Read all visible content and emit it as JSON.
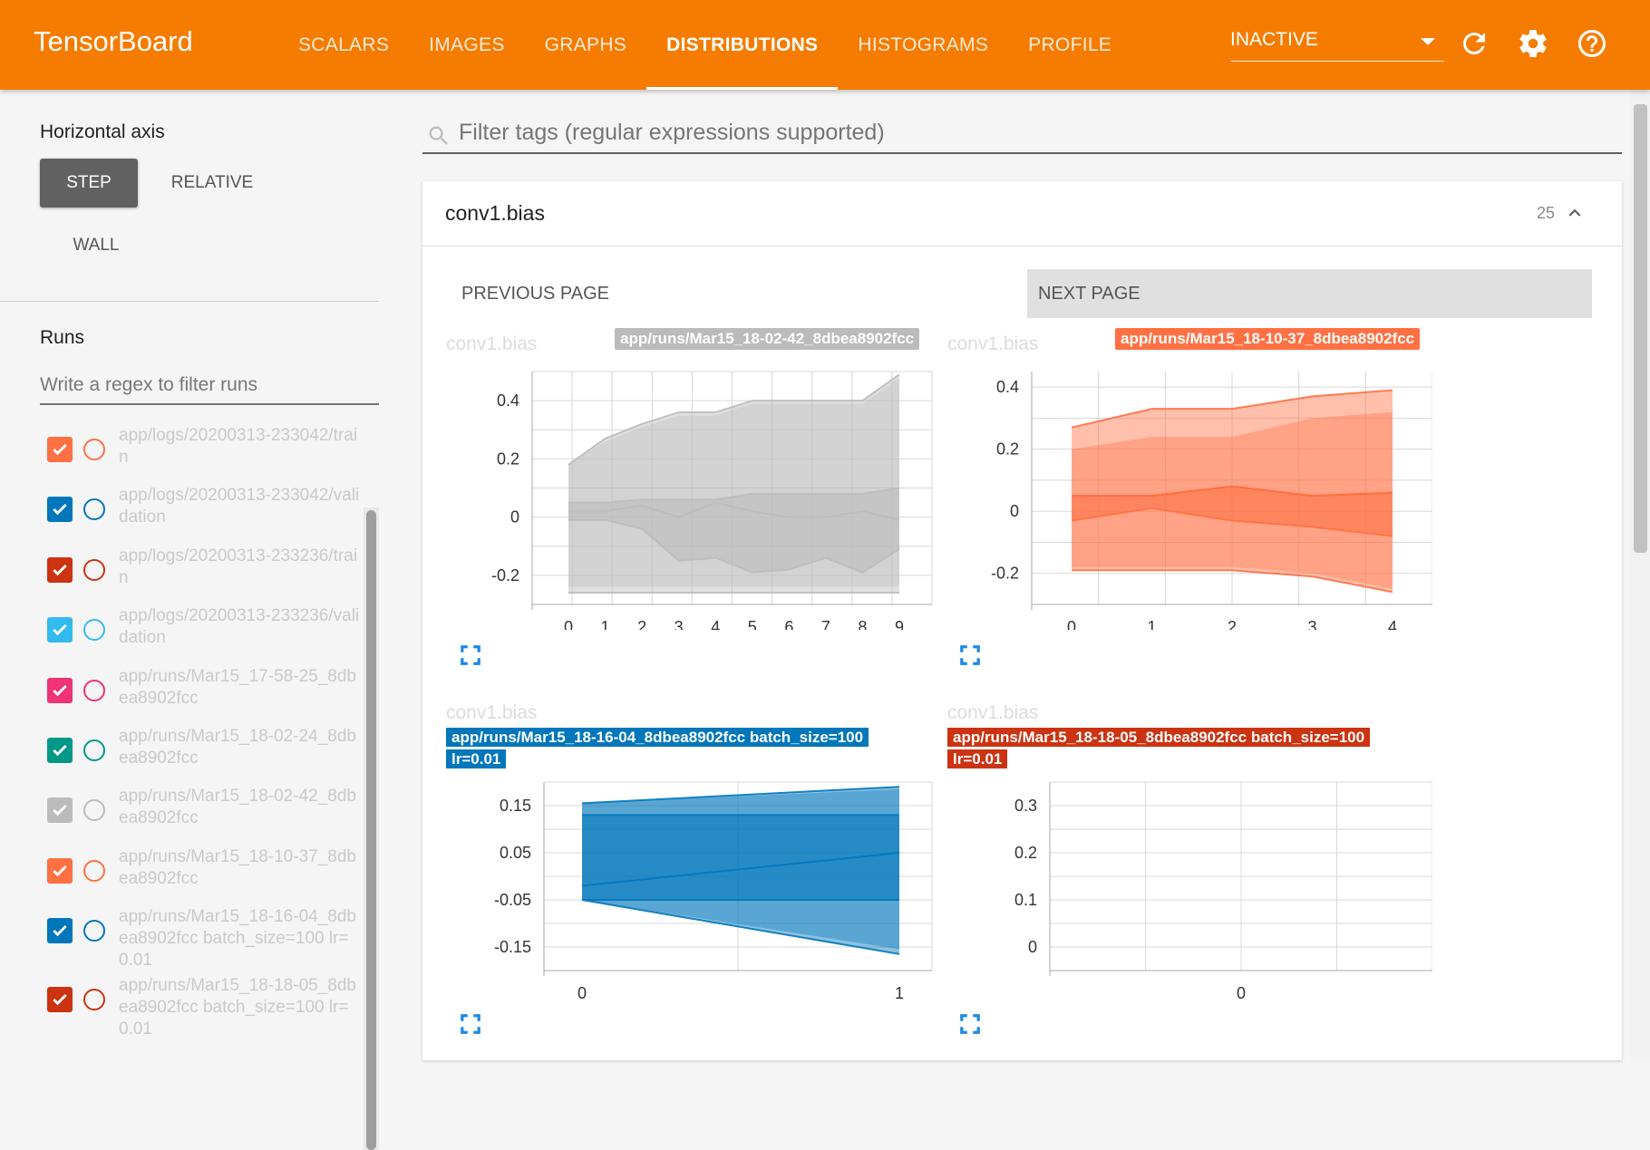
{
  "app": {
    "title": "TensorBoard"
  },
  "nav": {
    "tabs": [
      {
        "label": "SCALARS"
      },
      {
        "label": "IMAGES"
      },
      {
        "label": "GRAPHS"
      },
      {
        "label": "DISTRIBUTIONS"
      },
      {
        "label": "HISTOGRAMS"
      },
      {
        "label": "PROFILE"
      }
    ],
    "active_tab": "DISTRIBUTIONS",
    "run_selector_value": "INACTIVE"
  },
  "sidebar": {
    "horizontal_axis_label": "Horizontal axis",
    "axis_options": [
      "STEP",
      "RELATIVE",
      "WALL"
    ],
    "axis_selected": "STEP",
    "runs_label": "Runs",
    "runs_filter_placeholder": "Write a regex to filter runs",
    "runs": [
      {
        "name": "app/logs/20200313-233042/train",
        "color": "#ff7043"
      },
      {
        "name": "app/logs/20200313-233042/validation",
        "color": "#0077bb"
      },
      {
        "name": "app/logs/20200313-233236/train",
        "color": "#cc3311"
      },
      {
        "name": "app/logs/20200313-233236/validation",
        "color": "#33bbee"
      },
      {
        "name": "app/runs/Mar15_17-58-25_8dbea8902fcc",
        "color": "#ee3377"
      },
      {
        "name": "app/runs/Mar15_18-02-24_8dbea8902fcc",
        "color": "#009988"
      },
      {
        "name": "app/runs/Mar15_18-02-42_8dbea8902fcc",
        "color": "#bbbbbb"
      },
      {
        "name": "app/runs/Mar15_18-10-37_8dbea8902fcc",
        "color": "#ff7043"
      },
      {
        "name": "app/runs/Mar15_18-16-04_8dbea8902fcc batch_size=100 lr=0.01",
        "color": "#0077bb"
      },
      {
        "name": "app/runs/Mar15_18-18-05_8dbea8902fcc batch_size=100 lr=0.01",
        "color": "#cc3311"
      }
    ]
  },
  "main": {
    "filter_placeholder": "Filter tags (regular expressions supported)",
    "card": {
      "title": "conv1.bias",
      "count": "25",
      "prev_page": "PREVIOUS PAGE",
      "next_page": "NEXT PAGE"
    }
  },
  "chart_data": [
    {
      "type": "area",
      "tag": "conv1.bias",
      "run": "app/runs/Mar15_18-02-42_8dbea8902fcc",
      "color": "#bbbbbb",
      "x": [
        0,
        1,
        2,
        3,
        4,
        5,
        6,
        7,
        8,
        9
      ],
      "ylim": [
        -0.3,
        0.5
      ],
      "yticks": [
        "0.4",
        "0.2",
        "0",
        "-0.2"
      ],
      "bands": {
        "max": [
          0.18,
          0.27,
          0.32,
          0.36,
          0.36,
          0.4,
          0.4,
          0.4,
          0.4,
          0.49
        ],
        "p93": [
          0.18,
          0.26,
          0.31,
          0.35,
          0.35,
          0.39,
          0.39,
          0.39,
          0.39,
          0.48
        ],
        "p84": [
          0.05,
          0.05,
          0.06,
          0.06,
          0.06,
          0.08,
          0.08,
          0.08,
          0.08,
          0.1
        ],
        "median": [
          0.02,
          0.02,
          0.04,
          0.0,
          0.05,
          0.02,
          0.0,
          0.0,
          0.02,
          -0.01
        ],
        "p16": [
          -0.01,
          -0.01,
          -0.04,
          -0.15,
          -0.14,
          -0.19,
          -0.18,
          -0.14,
          -0.19,
          -0.11
        ],
        "p07": [
          -0.24,
          -0.24,
          -0.24,
          -0.24,
          -0.24,
          -0.24,
          -0.24,
          -0.24,
          -0.24,
          -0.24
        ],
        "min": [
          -0.26,
          -0.26,
          -0.26,
          -0.26,
          -0.26,
          -0.26,
          -0.26,
          -0.26,
          -0.26,
          -0.26
        ]
      }
    },
    {
      "type": "area",
      "tag": "conv1.bias",
      "run": "app/runs/Mar15_18-10-37_8dbea8902fcc",
      "color": "#ff7043",
      "x": [
        0,
        1,
        2,
        3,
        4
      ],
      "ylim": [
        -0.3,
        0.45
      ],
      "yticks": [
        "0.4",
        "0.2",
        "0",
        "-0.2"
      ],
      "bands": {
        "max": [
          0.27,
          0.33,
          0.33,
          0.37,
          0.39
        ],
        "p93": [
          0.2,
          0.24,
          0.24,
          0.3,
          0.32
        ],
        "p84": [
          0.05,
          0.05,
          0.08,
          0.05,
          0.06
        ],
        "median": [
          0.05,
          0.05,
          0.08,
          0.05,
          0.06
        ],
        "p16": [
          -0.03,
          0.01,
          -0.03,
          -0.05,
          -0.08
        ],
        "p07": [
          -0.18,
          -0.18,
          -0.18,
          -0.2,
          -0.25
        ],
        "min": [
          -0.19,
          -0.19,
          -0.19,
          -0.21,
          -0.26
        ]
      }
    },
    {
      "type": "area",
      "tag": "conv1.bias",
      "run": "app/runs/Mar15_18-16-04_8dbea8902fcc batch_size=100 lr=0.01",
      "color": "#0077bb",
      "x": [
        0,
        1
      ],
      "ylim": [
        -0.2,
        0.2
      ],
      "yticks": [
        "0.15",
        "0.05",
        "-0.05",
        "-0.15"
      ],
      "bands": {
        "max": [
          0.155,
          0.19
        ],
        "p93": [
          0.155,
          0.185
        ],
        "p84": [
          0.13,
          0.13
        ],
        "median": [
          -0.02,
          0.05
        ],
        "p16": [
          -0.05,
          -0.05
        ],
        "p07": [
          -0.05,
          -0.155
        ],
        "min": [
          -0.05,
          -0.165
        ]
      }
    },
    {
      "type": "area",
      "tag": "conv1.bias",
      "run": "app/runs/Mar15_18-18-05_8dbea8902fcc batch_size=100 lr=0.01",
      "color": "#cc3311",
      "x": [
        0
      ],
      "ylim": [
        -0.05,
        0.35
      ],
      "yticks": [
        "0.3",
        "0.2",
        "0.1",
        "0"
      ],
      "bands": {}
    }
  ]
}
